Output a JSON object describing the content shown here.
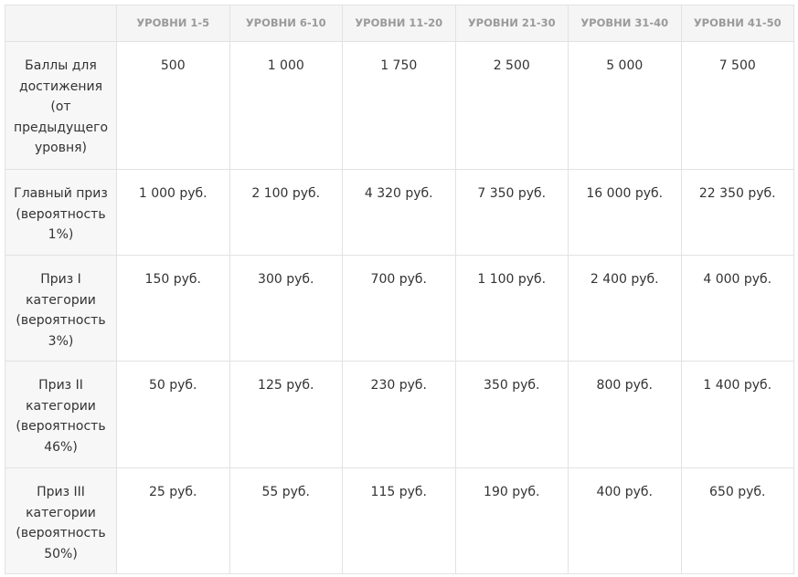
{
  "table": {
    "header": [
      "УРОВНИ 1-5",
      "УРОВНИ 6-10",
      "УРОВНИ 11-20",
      "УРОВНИ 21-30",
      "УРОВНИ 31-40",
      "УРОВНИ 41-50"
    ],
    "rows": [
      {
        "label": "Баллы для достижения (от предыдущего уровня)",
        "cells": [
          "500",
          "1 000",
          "1 750",
          "2 500",
          "5 000",
          "7 500"
        ]
      },
      {
        "label": "Главный приз (вероятность 1%)",
        "cells": [
          "1 000 руб.",
          "2 100 руб.",
          "4 320 руб.",
          "7 350 руб.",
          "16 000 руб.",
          "22 350 руб."
        ]
      },
      {
        "label": "Приз I категории (вероятность 3%)",
        "cells": [
          "150 руб.",
          "300 руб.",
          "700 руб.",
          "1 100 руб.",
          "2 400 руб.",
          "4 000 руб."
        ]
      },
      {
        "label": "Приз II категории (вероятность 46%)",
        "cells": [
          "50 руб.",
          "125 руб.",
          "230 руб.",
          "350 руб.",
          "800 руб.",
          "1 400 руб."
        ]
      },
      {
        "label": "Приз III категории (вероятность 50%)",
        "cells": [
          "25 руб.",
          "55 руб.",
          "115 руб.",
          "190 руб.",
          "400 руб.",
          "650 руб."
        ]
      }
    ]
  }
}
